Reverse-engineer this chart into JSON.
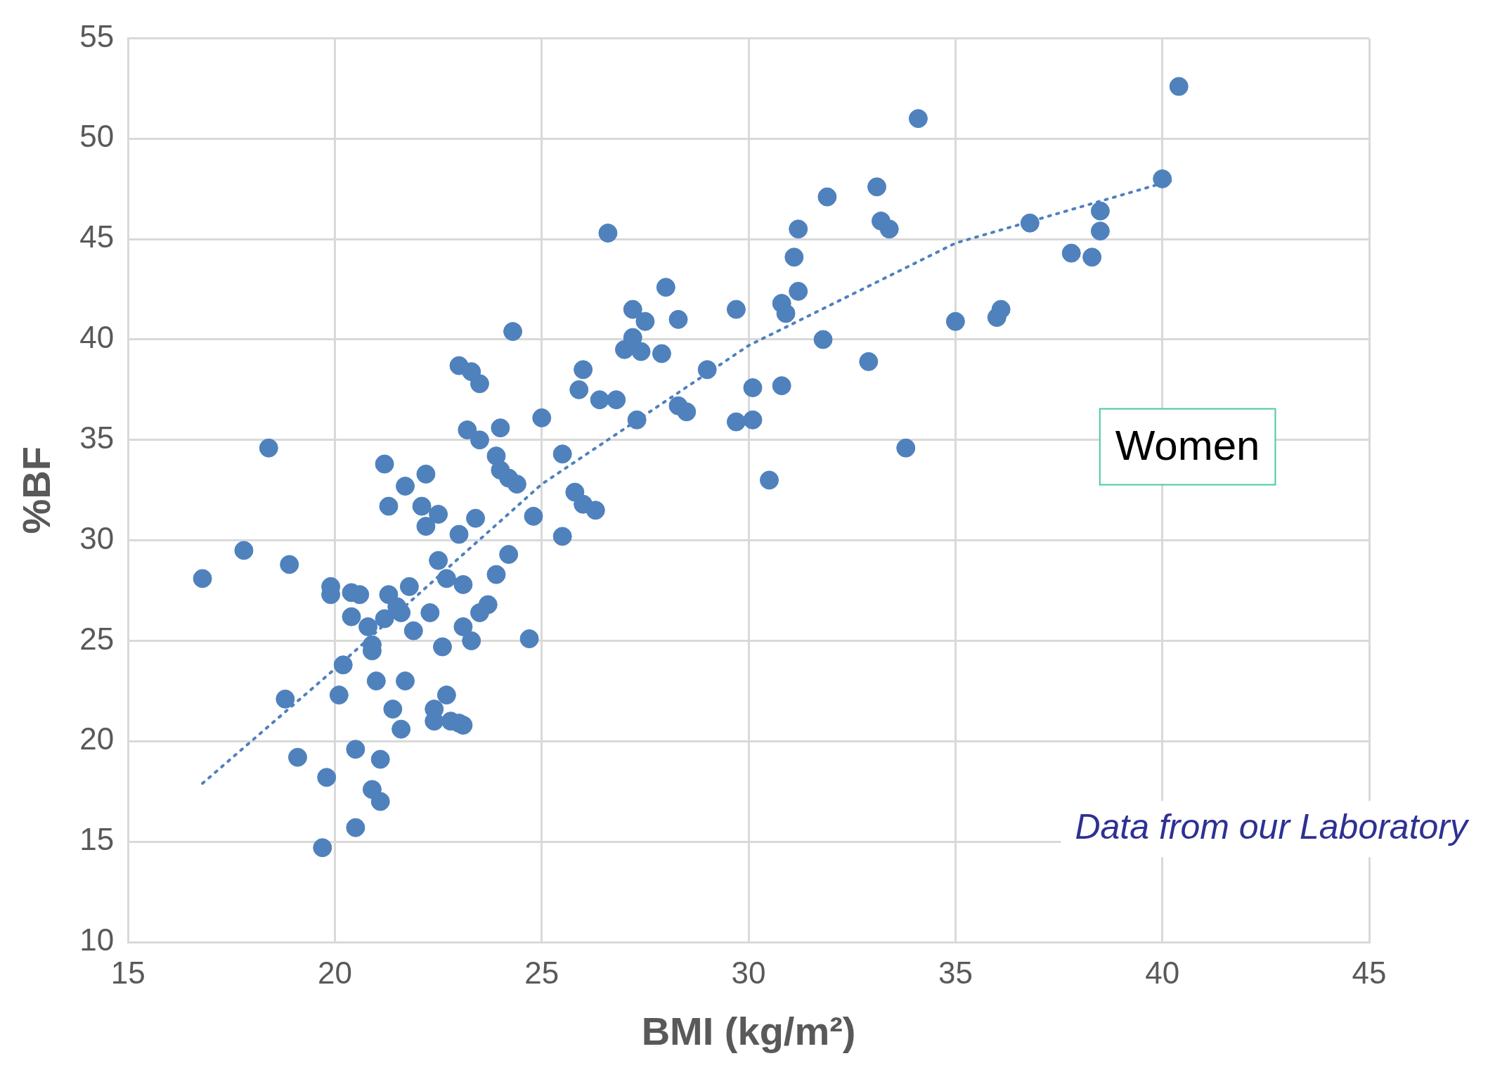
{
  "chart_data": {
    "type": "scatter",
    "xlabel": "BMI (kg/m²)",
    "ylabel": "%BF",
    "xlim": [
      15,
      45
    ],
    "xticks": [
      15,
      20,
      25,
      30,
      35,
      40,
      45
    ],
    "ylim": [
      10,
      55
    ],
    "yticks": [
      10,
      15,
      20,
      25,
      30,
      35,
      40,
      45,
      50,
      55
    ],
    "grid": true,
    "legend": false,
    "annotations": [
      "Women",
      "Data from our Laboratory"
    ],
    "series": [
      {
        "type": "scatter",
        "marker": "circle",
        "color": "#4f81bd",
        "x": [
          16.8,
          17.8,
          18.4,
          18.9,
          18.8,
          19.1,
          19.8,
          19.7,
          19.9,
          19.9,
          20.1,
          20.2,
          20.5,
          20.5,
          20.4,
          20.6,
          20.4,
          20.8,
          20.9,
          20.9,
          20.9,
          21.1,
          21.1,
          21.0,
          21.2,
          21.3,
          21.3,
          21.2,
          21.5,
          21.6,
          21.4,
          21.6,
          21.7,
          21.7,
          21.8,
          21.9,
          22.2,
          22.1,
          22.2,
          22.5,
          22.3,
          22.5,
          22.7,
          22.6,
          22.4,
          22.4,
          22.7,
          22.8,
          23.0,
          23.1,
          23.0,
          23.0,
          23.3,
          23.5,
          23.1,
          23.1,
          23.3,
          23.2,
          23.5,
          23.4,
          23.5,
          23.7,
          23.9,
          24.2,
          24.0,
          23.9,
          24.0,
          24.2,
          24.4,
          24.3,
          24.7,
          24.8,
          25.0,
          25.5,
          25.5,
          25.8,
          26.0,
          26.3,
          26.0,
          25.9,
          26.4,
          26.8,
          26.6,
          27.0,
          27.2,
          27.2,
          27.5,
          27.4,
          27.9,
          27.3,
          28.0,
          28.3,
          28.3,
          28.5,
          29.0,
          29.7,
          29.7,
          30.1,
          30.1,
          30.5,
          30.8,
          30.8,
          30.9,
          31.1,
          31.2,
          31.2,
          31.8,
          31.9,
          32.9,
          33.1,
          33.2,
          33.4,
          34.1,
          33.8,
          35.0,
          36.0,
          36.1,
          36.8,
          37.8,
          38.3,
          38.5,
          38.5,
          40.0,
          40.4
        ],
        "values": [
          28.1,
          29.5,
          34.6,
          28.8,
          22.1,
          19.2,
          18.2,
          14.7,
          27.7,
          27.3,
          22.3,
          23.8,
          15.7,
          19.6,
          27.4,
          27.3,
          26.2,
          25.7,
          24.8,
          24.5,
          17.6,
          17.0,
          19.1,
          23.0,
          33.8,
          31.7,
          27.3,
          26.1,
          26.7,
          26.4,
          21.6,
          20.6,
          23.0,
          32.7,
          27.7,
          25.5,
          33.3,
          31.7,
          30.7,
          31.3,
          26.4,
          29.0,
          28.1,
          24.7,
          21.6,
          21.0,
          22.3,
          21.0,
          20.9,
          20.8,
          30.3,
          38.7,
          38.4,
          37.8,
          27.8,
          25.7,
          25.0,
          35.5,
          35.0,
          31.1,
          26.4,
          26.8,
          28.3,
          29.3,
          35.6,
          34.2,
          33.5,
          33.1,
          32.8,
          40.4,
          25.1,
          31.2,
          36.1,
          34.3,
          30.2,
          32.4,
          31.8,
          31.5,
          38.5,
          37.5,
          37.0,
          37.0,
          45.3,
          39.5,
          40.1,
          41.5,
          40.9,
          39.4,
          39.3,
          36.0,
          42.6,
          41.0,
          36.7,
          36.4,
          38.5,
          41.5,
          35.9,
          36.0,
          37.6,
          33.0,
          37.7,
          41.8,
          41.3,
          44.1,
          45.5,
          42.4,
          40.0,
          47.1,
          38.9,
          47.6,
          45.9,
          45.5,
          51.0,
          34.6,
          40.9,
          41.1,
          41.5,
          45.8,
          44.3,
          44.1,
          46.4,
          45.4,
          48.0,
          52.6
        ]
      },
      {
        "type": "line",
        "marker": "none",
        "line_style": "dotted",
        "color": "#4f81bd",
        "x": [
          16.8,
          20,
          25,
          30,
          35,
          40.2
        ],
        "values": [
          17.9,
          23.6,
          32.8,
          39.7,
          44.8,
          47.9
        ]
      }
    ]
  }
}
